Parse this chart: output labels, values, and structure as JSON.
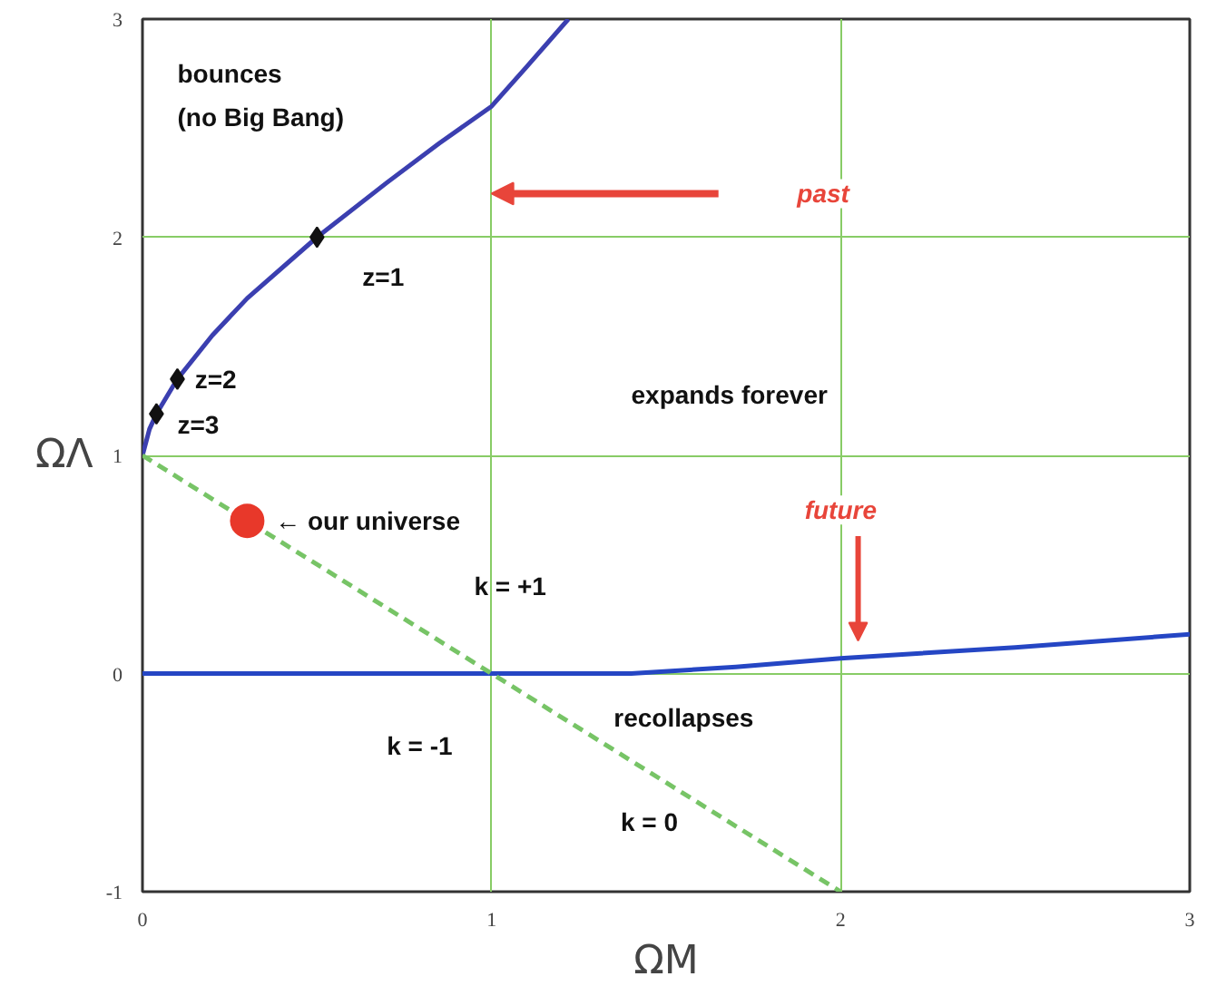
{
  "chart_data": {
    "type": "line",
    "xlabel": "ΩM",
    "ylabel": "ΩΛ",
    "xlim": [
      0,
      3
    ],
    "ylim": [
      -1,
      3
    ],
    "xticks": [
      0,
      1,
      2,
      3
    ],
    "yticks": [
      -1,
      0,
      1,
      2,
      3
    ],
    "grid": true,
    "series": [
      {
        "color": "#3b3fb0",
        "line_style": "solid",
        "marker": "none",
        "x": [
          0,
          0.02,
          0.04,
          0.1,
          0.2,
          0.3,
          0.5,
          0.7,
          0.85,
          1.0,
          1.1,
          1.22
        ],
        "values": [
          1,
          1.12,
          1.19,
          1.35,
          1.55,
          1.72,
          2.0,
          2.25,
          2.43,
          2.6,
          2.78,
          3
        ]
      },
      {
        "color": "#2546c4",
        "line_style": "solid",
        "marker": "none",
        "x": [
          0,
          1.4,
          1.7,
          2.0,
          2.5,
          3.0
        ],
        "values": [
          0,
          0,
          0.03,
          0.07,
          0.12,
          0.18
        ]
      },
      {
        "color": "#77c466",
        "line_style": "dashed",
        "marker": "none",
        "x": [
          0,
          2
        ],
        "values": [
          1,
          -1
        ]
      },
      {
        "type": "scatter",
        "color": "#111111",
        "marker": "diamond",
        "x": [
          0.04,
          0.1,
          0.5
        ],
        "values": [
          1.19,
          1.35,
          2.0
        ]
      },
      {
        "type": "scatter",
        "color": "#e8382a",
        "marker": "circle",
        "x": [
          0.3
        ],
        "values": [
          0.7
        ]
      }
    ],
    "annotations": [
      "bounces",
      "(no Big Bang)",
      "past",
      {
        "text": "z=1",
        "x": 0.5,
        "y": 2.0
      },
      {
        "text": "z=2",
        "x": 0.1,
        "y": 1.35
      },
      {
        "text": "z=3",
        "x": 0.04,
        "y": 1.19
      },
      "expands forever",
      {
        "text": "← our universe",
        "x": 0.3,
        "y": 0.7
      },
      "future",
      "k = +1",
      "recollapses",
      "k = -1",
      "k = 0"
    ]
  }
}
